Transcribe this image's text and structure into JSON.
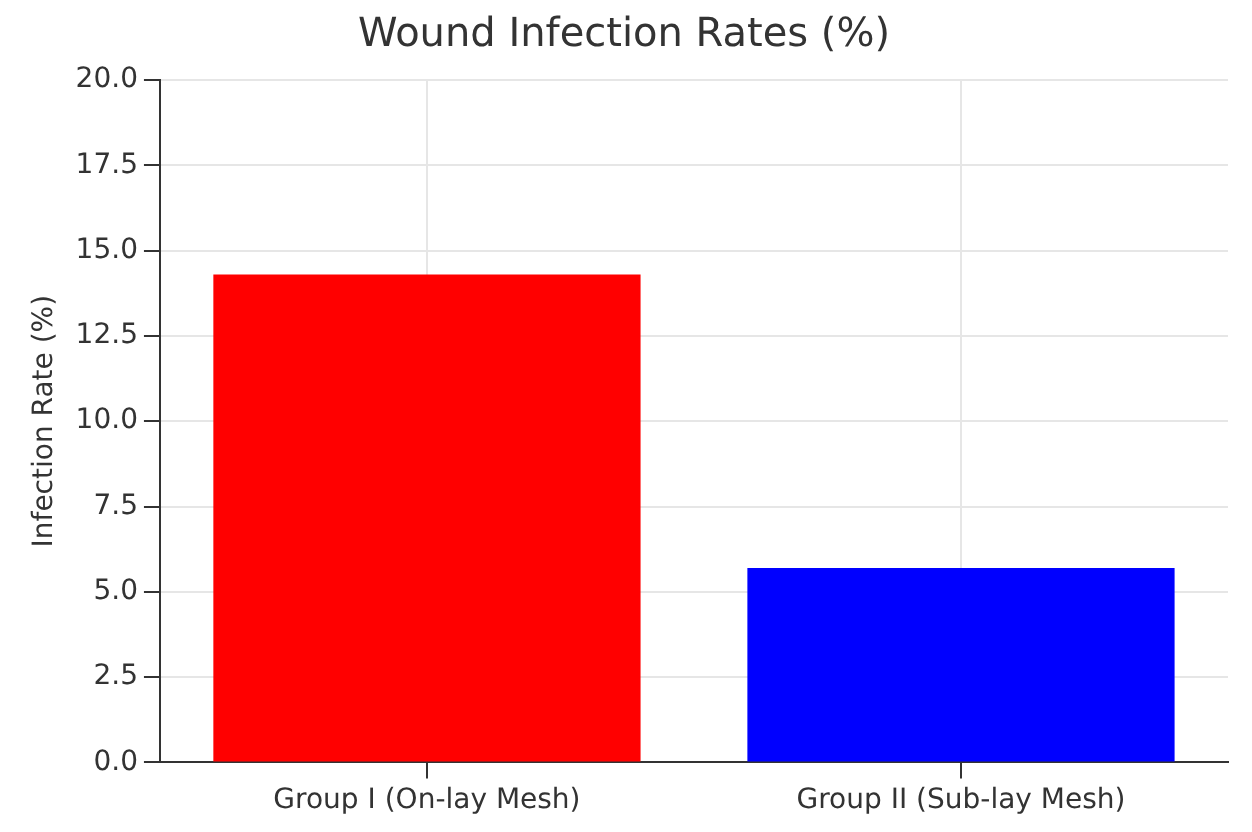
{
  "chart_data": {
    "type": "bar",
    "title": "Wound Infection Rates (%)",
    "ylabel": "Infection Rate (%)",
    "categories": [
      "Group I (On-lay Mesh)",
      "Group II (Sub-lay Mesh)"
    ],
    "values": [
      14.3,
      5.7
    ],
    "colors": [
      "#ff0000",
      "#0000ff"
    ],
    "ylim": [
      0,
      20
    ],
    "yticks": [
      {
        "value": 0,
        "label": "0.0"
      },
      {
        "value": 2.5,
        "label": "2.5"
      },
      {
        "value": 5,
        "label": "5.0"
      },
      {
        "value": 7.5,
        "label": "7.5"
      },
      {
        "value": 10,
        "label": "10.0"
      },
      {
        "value": 12.5,
        "label": "12.5"
      },
      {
        "value": 15,
        "label": "15.0"
      },
      {
        "value": 17.5,
        "label": "17.5"
      },
      {
        "value": 20,
        "label": "20.0"
      }
    ],
    "grid": true
  }
}
